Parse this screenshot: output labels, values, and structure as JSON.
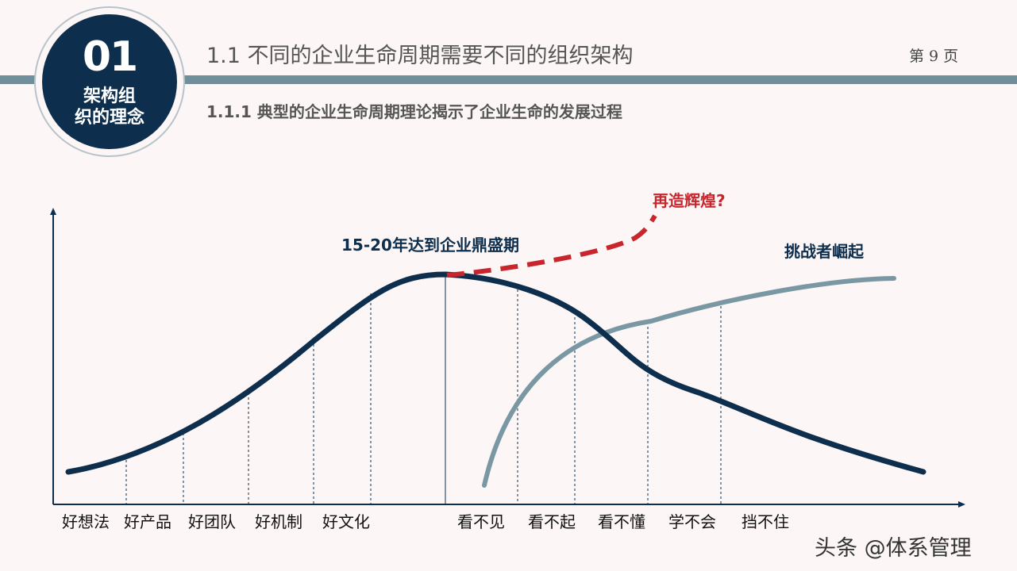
{
  "badge": {
    "number": "01",
    "line1": "架构组",
    "line2": "织的理念"
  },
  "header": {
    "title": "1.1 不同的企业生命周期需要不同的组织架构",
    "page": "第 9 页"
  },
  "subtitle": "1.1.1 典型的企业生命周期理论揭示了企业生命的发展过程",
  "diagram": {
    "peak_label": "15-20年达到企业鼎盛期",
    "rebirth_label": "再造辉煌?",
    "challenger_label": "挑战者崛起",
    "growth_stages": [
      "好想法",
      "好产品",
      "好团队",
      "好机制",
      "好文化"
    ],
    "decline_stages": [
      "看不见",
      "看不起",
      "看不懂",
      "学不会",
      "挡不住"
    ],
    "colors": {
      "main_curve": "#0d2e4c",
      "rebirth_curve": "#c8262c",
      "challenger_curve": "#7a98a4",
      "accent_text": "#0d2e4c",
      "rebirth_text": "#c8262c"
    }
  },
  "watermark": "头条 @体系管理"
}
